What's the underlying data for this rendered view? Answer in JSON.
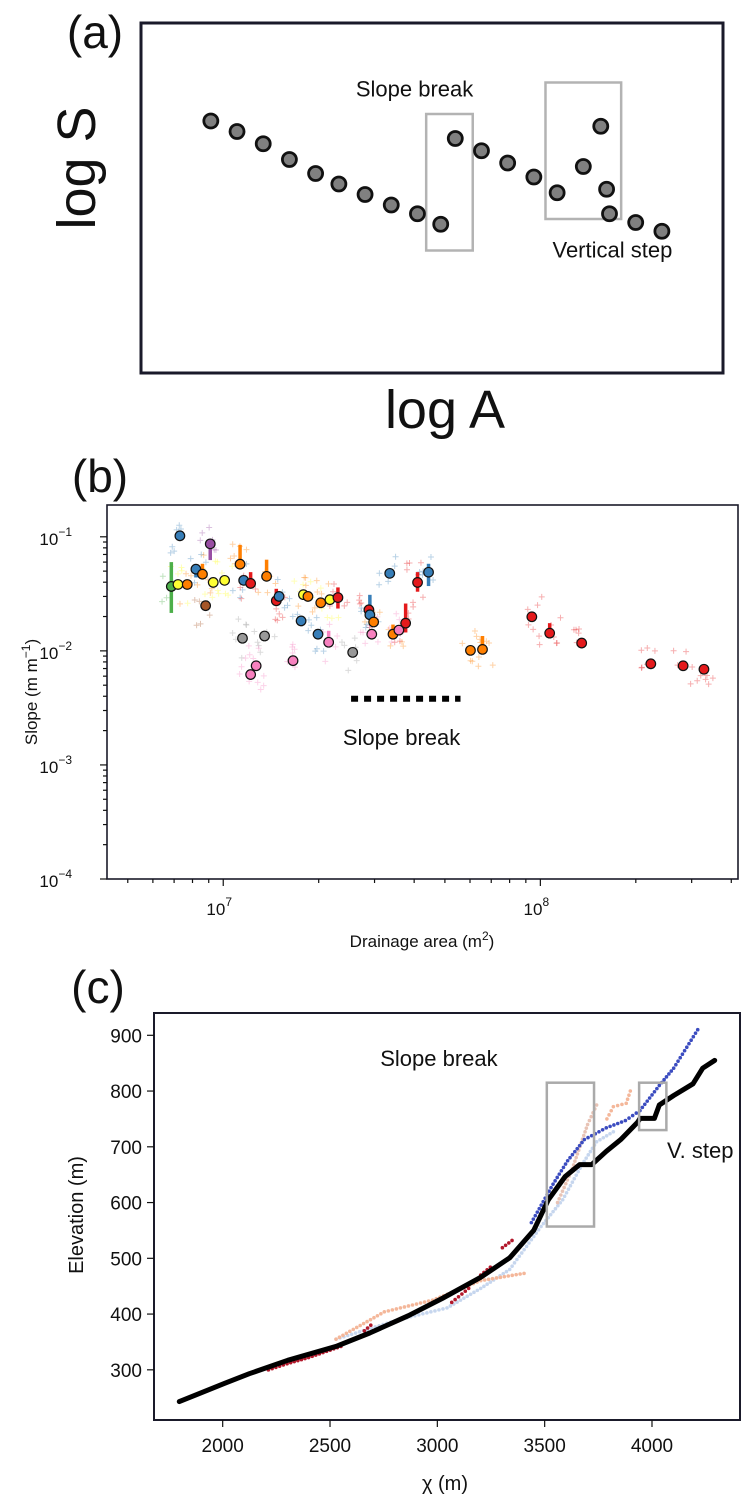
{
  "figure": {
    "panels": [
      "(a)",
      "(b)",
      "(c)"
    ]
  },
  "chart_data": [
    {
      "panel": "(a)",
      "type": "scatter",
      "title": "",
      "xlabel": "log A",
      "ylabel": "log S",
      "xlim": [
        0,
        10
      ],
      "ylim": [
        0,
        10
      ],
      "ticks": false,
      "marker_color": "#808080",
      "marker_edge": "#111111",
      "points": [
        {
          "x": 1.2,
          "y": 7.2
        },
        {
          "x": 1.65,
          "y": 6.9
        },
        {
          "x": 2.1,
          "y": 6.55
        },
        {
          "x": 2.55,
          "y": 6.1
        },
        {
          "x": 3.0,
          "y": 5.7
        },
        {
          "x": 3.4,
          "y": 5.4
        },
        {
          "x": 3.85,
          "y": 5.1
        },
        {
          "x": 4.3,
          "y": 4.8
        },
        {
          "x": 4.75,
          "y": 4.55
        },
        {
          "x": 5.15,
          "y": 4.25
        },
        {
          "x": 5.4,
          "y": 6.7
        },
        {
          "x": 5.85,
          "y": 6.35
        },
        {
          "x": 6.3,
          "y": 6.0
        },
        {
          "x": 6.75,
          "y": 5.6
        },
        {
          "x": 7.15,
          "y": 5.15
        },
        {
          "x": 7.6,
          "y": 5.9
        },
        {
          "x": 7.9,
          "y": 7.05
        },
        {
          "x": 8.0,
          "y": 5.25
        },
        {
          "x": 8.05,
          "y": 4.55
        },
        {
          "x": 8.5,
          "y": 4.3
        },
        {
          "x": 8.95,
          "y": 4.05
        }
      ],
      "annotations": [
        {
          "label": "Slope break",
          "box": {
            "x0": 4.9,
            "x1": 5.7,
            "y0": 3.5,
            "y1": 7.4
          },
          "label_x": 4.7,
          "label_y": 7.9
        },
        {
          "label": "Vertical step",
          "box": {
            "x0": 6.95,
            "x1": 8.25,
            "y0": 4.4,
            "y1": 8.3
          },
          "label_x": 8.1,
          "label_y": 3.3
        }
      ]
    },
    {
      "panel": "(b)",
      "type": "scatter",
      "title": "",
      "xlabel": "Drainage area (m²)",
      "ylabel": "Slope (m m⁻¹)",
      "xscale": "log",
      "yscale": "log",
      "xlim": [
        4300000.0,
        420000000.0
      ],
      "ylim": [
        0.0001,
        0.19
      ],
      "xticks": [
        {
          "value": 10000000.0,
          "base": "10",
          "exp": "7"
        },
        {
          "value": 100000000.0,
          "base": "10",
          "exp": "8"
        }
      ],
      "yticks": [
        {
          "value": 0.1,
          "base": "10",
          "exp": "−1"
        },
        {
          "value": 0.01,
          "base": "10",
          "exp": "−2"
        },
        {
          "value": 0.001,
          "base": "10",
          "exp": "−3"
        },
        {
          "value": 0.0001,
          "base": "10",
          "exp": "−4"
        }
      ],
      "grid": false,
      "colors": {
        "green": "#4daf4a",
        "yellow": "#ffff33",
        "orange": "#ff7f00",
        "blue": "#377eb8",
        "purple": "#984ea3",
        "brown": "#a65628",
        "red": "#e41a1c",
        "gray": "#999999",
        "pink": "#f781bf"
      },
      "points": [
        {
          "x": 6860000.0,
          "y": 0.0367,
          "c": "green",
          "err": [
            0.0215,
            0.06
          ]
        },
        {
          "x": 7200000.0,
          "y": 0.0382,
          "c": "yellow"
        },
        {
          "x": 7700000.0,
          "y": 0.0382,
          "c": "orange"
        },
        {
          "x": 7300000.0,
          "y": 0.102,
          "c": "blue"
        },
        {
          "x": 9100000.0,
          "y": 0.0867,
          "c": "purple",
          "err": [
            0.0625,
            0.0867
          ]
        },
        {
          "x": 8200000.0,
          "y": 0.052,
          "c": "blue",
          "err": [
            0.044,
            0.052
          ]
        },
        {
          "x": 8600000.0,
          "y": 0.047,
          "c": "orange",
          "err": [
            0.047,
            0.058
          ]
        },
        {
          "x": 8800000.0,
          "y": 0.0249,
          "c": "brown"
        },
        {
          "x": 9300000.0,
          "y": 0.0398,
          "c": "yellow"
        },
        {
          "x": 10100000.0,
          "y": 0.0415,
          "c": "yellow"
        },
        {
          "x": 11300000.0,
          "y": 0.0575,
          "c": "orange",
          "err": [
            0.0575,
            0.085
          ]
        },
        {
          "x": 11600000.0,
          "y": 0.0415,
          "c": "blue"
        },
        {
          "x": 12200000.0,
          "y": 0.039,
          "c": "red",
          "err": [
            0.039,
            0.049
          ]
        },
        {
          "x": 13700000.0,
          "y": 0.045,
          "c": "orange",
          "err": [
            0.045,
            0.063
          ]
        },
        {
          "x": 14700000.0,
          "y": 0.0275,
          "c": "red",
          "err": [
            0.0275,
            0.035
          ]
        },
        {
          "x": 15000000.0,
          "y": 0.03,
          "c": "blue"
        },
        {
          "x": 11500000.0,
          "y": 0.0129,
          "c": "gray"
        },
        {
          "x": 13500000.0,
          "y": 0.0135,
          "c": "gray"
        },
        {
          "x": 17900000.0,
          "y": 0.0311,
          "c": "yellow"
        },
        {
          "x": 18500000.0,
          "y": 0.03,
          "c": "orange"
        },
        {
          "x": 20300000.0,
          "y": 0.0264,
          "c": "orange"
        },
        {
          "x": 21700000.0,
          "y": 0.0281,
          "c": "yellow"
        },
        {
          "x": 23000000.0,
          "y": 0.0293,
          "c": "red",
          "err": [
            0.0235,
            0.036
          ]
        },
        {
          "x": 17600000.0,
          "y": 0.0183,
          "c": "blue"
        },
        {
          "x": 19900000.0,
          "y": 0.014,
          "c": "blue"
        },
        {
          "x": 21500000.0,
          "y": 0.0119,
          "c": "pink",
          "err": [
            0.0119,
            0.015
          ]
        },
        {
          "x": 16600000.0,
          "y": 0.0082,
          "c": "pink"
        },
        {
          "x": 12200000.0,
          "y": 0.0062,
          "c": "pink"
        },
        {
          "x": 12700000.0,
          "y": 0.0074,
          "c": "pink"
        },
        {
          "x": 25600000.0,
          "y": 0.0097,
          "c": "gray"
        },
        {
          "x": 28800000.0,
          "y": 0.0229,
          "c": "red"
        },
        {
          "x": 29000000.0,
          "y": 0.0207,
          "c": "blue",
          "err": [
            0.0207,
            0.031
          ]
        },
        {
          "x": 29800000.0,
          "y": 0.0179,
          "c": "orange"
        },
        {
          "x": 29400000.0,
          "y": 0.014,
          "c": "pink"
        },
        {
          "x": 33500000.0,
          "y": 0.0478,
          "c": "blue"
        },
        {
          "x": 34300000.0,
          "y": 0.014,
          "c": "orange",
          "err": [
            0.014,
            0.017
          ]
        },
        {
          "x": 35800000.0,
          "y": 0.0152,
          "c": "pink"
        },
        {
          "x": 37600000.0,
          "y": 0.0175,
          "c": "red",
          "err": [
            0.0145,
            0.026
          ]
        },
        {
          "x": 41000000.0,
          "y": 0.0398,
          "c": "red",
          "err": [
            0.033,
            0.049
          ]
        },
        {
          "x": 44400000.0,
          "y": 0.0489,
          "c": "blue",
          "err": [
            0.037,
            0.058
          ]
        },
        {
          "x": 60200000.0,
          "y": 0.0101,
          "c": "orange"
        },
        {
          "x": 65700000.0,
          "y": 0.0103,
          "c": "orange",
          "err": [
            0.0094,
            0.0135
          ]
        },
        {
          "x": 94000000.0,
          "y": 0.0199,
          "c": "red"
        },
        {
          "x": 107000000.0,
          "y": 0.0143,
          "c": "red",
          "err": [
            0.0143,
            0.0175
          ]
        },
        {
          "x": 135000000.0,
          "y": 0.0117,
          "c": "red"
        },
        {
          "x": 223000000.0,
          "y": 0.0077,
          "c": "red"
        },
        {
          "x": 282000000.0,
          "y": 0.0074,
          "c": "red"
        },
        {
          "x": 328000000.0,
          "y": 0.0069,
          "c": "red"
        }
      ],
      "annotations": [
        {
          "label": "Slope break",
          "type": "dotted-line",
          "x0": 25300000.0,
          "x1": 56000000.0,
          "y": 0.0038,
          "label_x": 36500000.0,
          "label_y": 0.0015
        }
      ]
    },
    {
      "panel": "(c)",
      "type": "line",
      "title": "",
      "xlabel": "χ (m)",
      "ylabel": "Elevation (m)",
      "xlim": [
        1680,
        4410
      ],
      "ylim": [
        210,
        940
      ],
      "xticks": [
        "2000",
        "2500",
        "3000",
        "3500",
        "4000"
      ],
      "xtick_values": [
        2000,
        2500,
        3000,
        3500,
        4000
      ],
      "yticks": [
        "300",
        "400",
        "500",
        "600",
        "700",
        "800",
        "900"
      ],
      "ytick_values": [
        300,
        400,
        500,
        600,
        700,
        800,
        900
      ],
      "grid": false,
      "series": [
        {
          "name": "light-blue-tributary",
          "color": "#c6d6ee",
          "style": "dots",
          "x": [
            2528,
            2820,
            3045,
            3202,
            3337,
            3483,
            3584,
            3674,
            3742,
            3820
          ],
          "y": [
            355,
            390,
            411,
            446,
            480,
            557,
            605,
            668,
            709,
            727
          ]
        },
        {
          "name": "salmon-tributary-1",
          "color": "#f4b79a",
          "style": "dots",
          "x": [
            2528,
            2753,
            2978,
            3202,
            3404
          ],
          "y": [
            355,
            404,
            425,
            460,
            473
          ]
        },
        {
          "name": "salmon-tributary-2",
          "color": "#e8c3b5",
          "style": "dots",
          "x": [
            3560,
            3629,
            3700,
            3742
          ],
          "y": [
            600,
            661,
            740,
            775
          ]
        },
        {
          "name": "salmon-tributary-3",
          "color": "#f4b79a",
          "style": "dots",
          "x": [
            3790,
            3820,
            3880,
            3899
          ],
          "y": [
            750,
            772,
            778,
            800
          ]
        },
        {
          "name": "dark-red-1",
          "color": "#b2182b",
          "style": "dots",
          "x": [
            2213,
            2300,
            2400,
            2551
          ],
          "y": [
            300,
            311,
            322,
            342
          ]
        },
        {
          "name": "dark-red-2",
          "color": "#b2182b",
          "style": "dots",
          "x": [
            2660,
            2690
          ],
          "y": [
            370,
            380
          ]
        },
        {
          "name": "dark-red-3",
          "color": "#b2182b",
          "style": "dots",
          "x": [
            3067,
            3146
          ],
          "y": [
            421,
            446
          ]
        },
        {
          "name": "dark-red-4",
          "color": "#b2182b",
          "style": "dots",
          "x": [
            3202,
            3247
          ],
          "y": [
            470,
            484
          ]
        },
        {
          "name": "dark-red-5",
          "color": "#b2182b",
          "style": "dots",
          "x": [
            3303,
            3348
          ],
          "y": [
            519,
            532
          ]
        },
        {
          "name": "blue-tributary",
          "color": "#3b4cc0",
          "style": "dots",
          "x": [
            3438,
            3539,
            3607,
            3685,
            3787,
            3876,
            3944,
            4034,
            4101,
            4213
          ],
          "y": [
            564,
            633,
            675,
            713,
            734,
            747,
            765,
            810,
            841,
            910
          ]
        },
        {
          "name": "main-stem",
          "color": "#000000",
          "style": "line",
          "x": [
            1798,
            2011,
            2124,
            2303,
            2528,
            2685,
            2865,
            3022,
            3202,
            3337,
            3449,
            3517,
            3596,
            3663,
            3719,
            3787,
            3854,
            3933,
            3944,
            4011,
            4034,
            4101,
            4191,
            4236,
            4292
          ],
          "y": [
            243,
            276,
            293,
            317,
            342,
            366,
            397,
            428,
            466,
            501,
            550,
            605,
            647,
            668,
            668,
            692,
            713,
            744,
            751,
            751,
            775,
            792,
            813,
            841,
            855
          ]
        }
      ],
      "annotations": [
        {
          "label": "Slope break",
          "box": {
            "x0": 3510,
            "x1": 3730,
            "y0": 557,
            "y1": 815
          },
          "label_x": 3060,
          "label_y": 845
        },
        {
          "label": "V. step",
          "box": {
            "x0": 3940,
            "x1": 4067,
            "y0": 730,
            "y1": 815
          },
          "label_x": 4070,
          "label_y": 680
        }
      ]
    }
  ]
}
